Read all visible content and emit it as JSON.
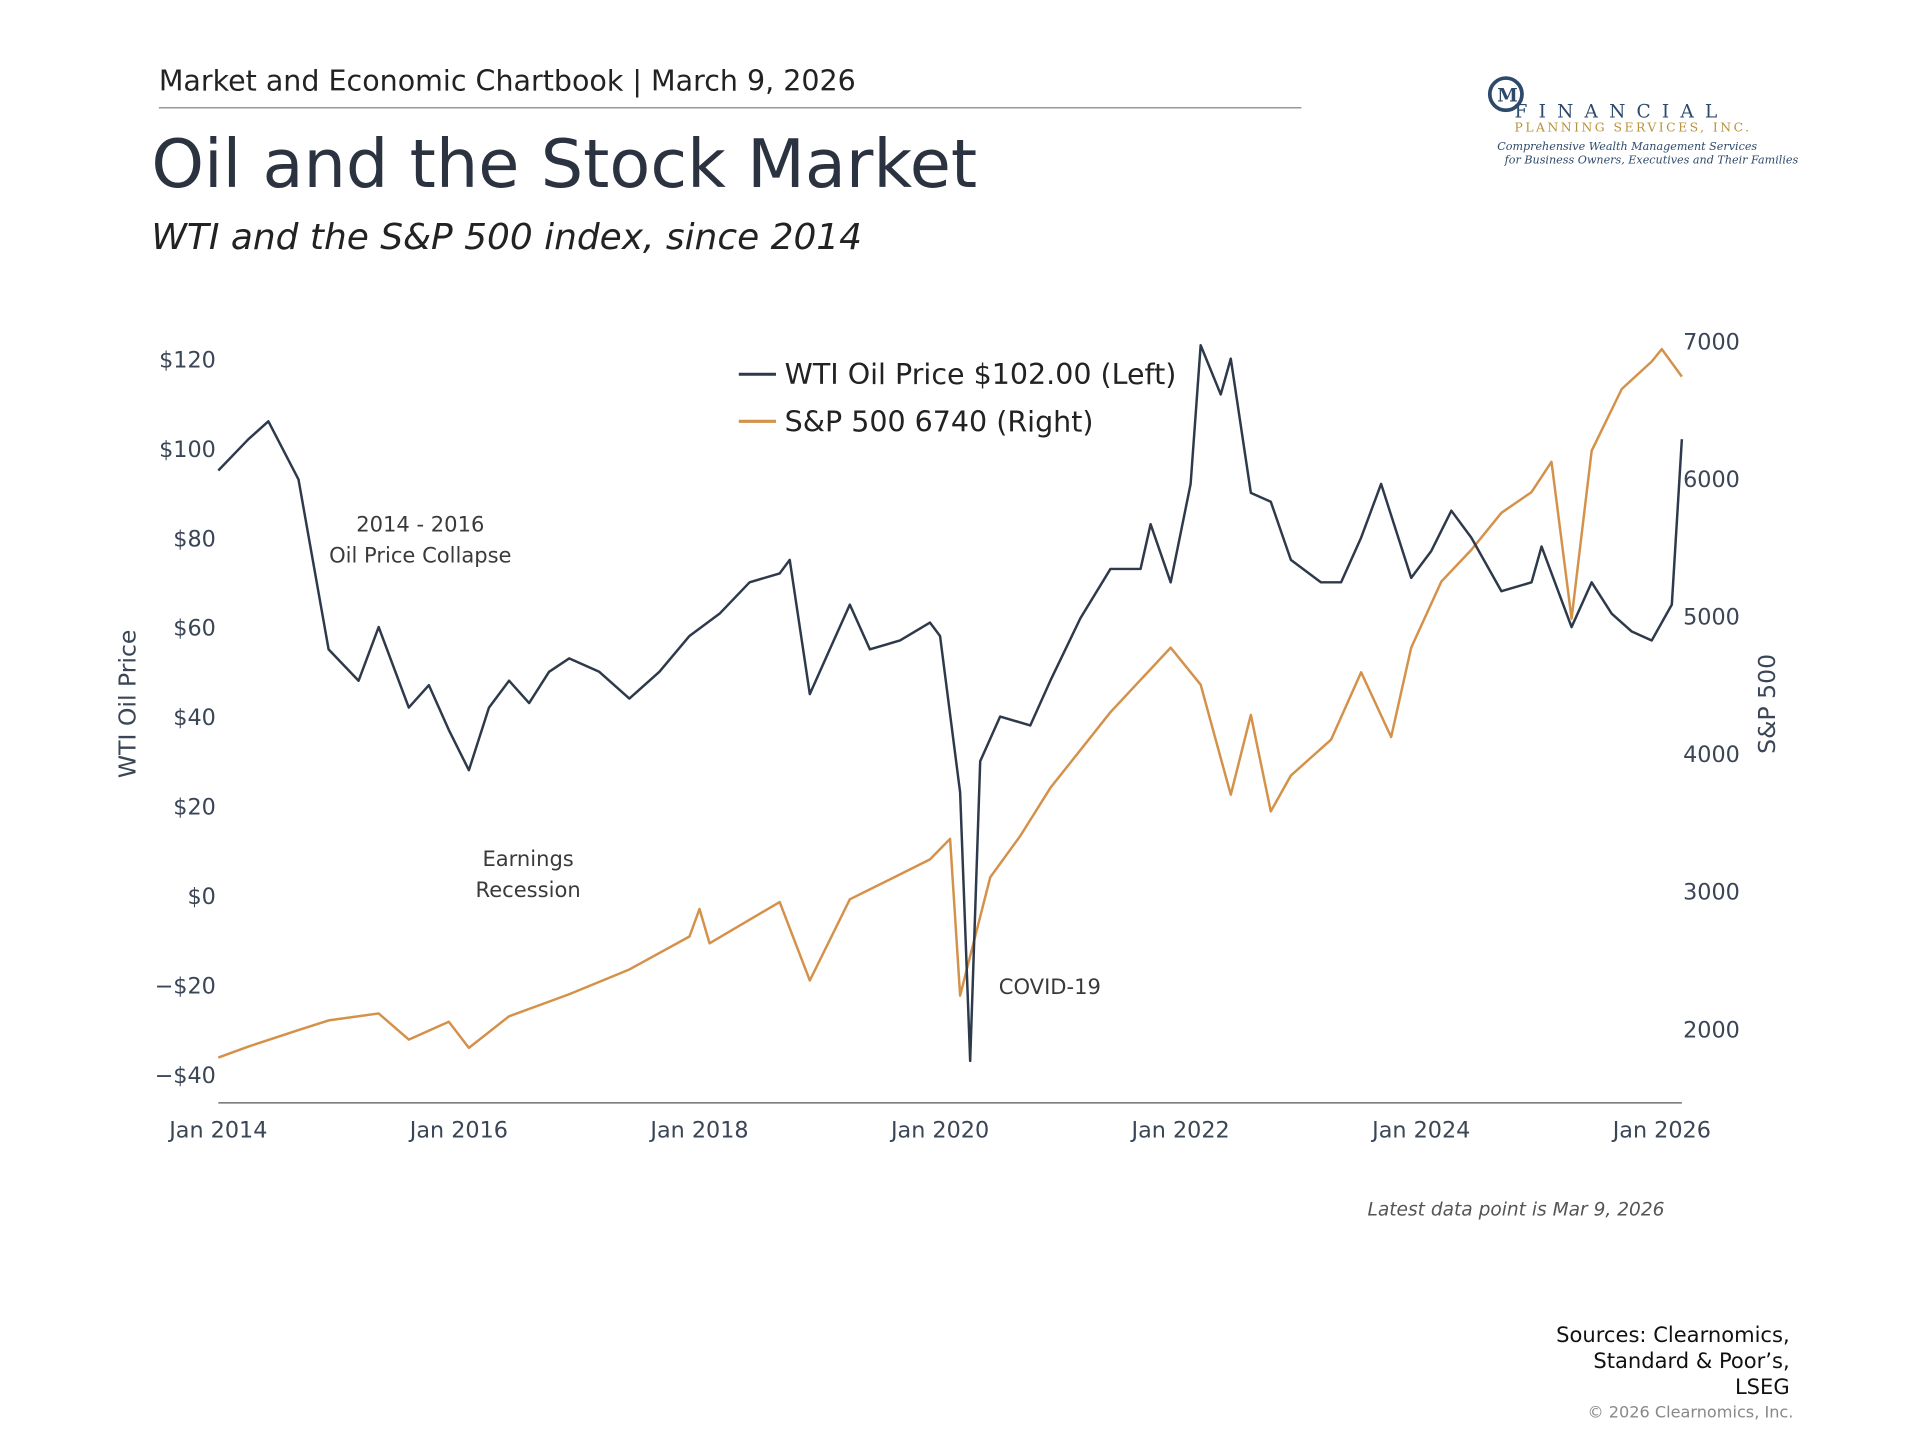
{
  "header": {
    "chartbook": "Market and Economic Chartbook | March 9, 2026",
    "logo_name": "FINANCIAL",
    "logo_sub": "PLANNING SERVICES, INC.",
    "logo_tagline": [
      "Comprehensive Wealth Management Services",
      "for Business Owners, Executives and Their Families"
    ]
  },
  "chart_data": {
    "type": "line",
    "title": "Oil and the Stock Market",
    "subtitle": "WTI and the S&P 500 index, since 2014",
    "y_label": "WTI Oil Price",
    "y2_label": "S&P 500",
    "xlim": [
      "2014-01",
      "2026-03"
    ],
    "xticks": [
      {
        "value": "2014-01",
        "label": "Jan 2014"
      },
      {
        "value": "2016-01",
        "label": "Jan 2016"
      },
      {
        "value": "2018-01",
        "label": "Jan 2018"
      },
      {
        "value": "2020-01",
        "label": "Jan 2020"
      },
      {
        "value": "2022-01",
        "label": "Jan 2022"
      },
      {
        "value": "2024-01",
        "label": "Jan 2024"
      },
      {
        "value": "2026-01",
        "label": "Jan 2026"
      }
    ],
    "ylim": [
      -46.4,
      124
    ],
    "yticks": [
      {
        "value": -40,
        "label": "−$40"
      },
      {
        "value": -20,
        "label": "−$20"
      },
      {
        "value": 0,
        "label": "$0"
      },
      {
        "value": 20,
        "label": "$20"
      },
      {
        "value": 40,
        "label": "$40"
      },
      {
        "value": 60,
        "label": "$60"
      },
      {
        "value": 80,
        "label": "$80"
      },
      {
        "value": 100,
        "label": "$100"
      },
      {
        "value": 120,
        "label": "$120"
      }
    ],
    "y2lim": [
      1460,
      7000
    ],
    "y2ticks": [
      2000,
      3000,
      4000,
      5000,
      6000,
      7000
    ],
    "legend": "top",
    "series": [
      {
        "name": "WTI Oil Price $102.00 (Left)",
        "color": "#2e3a4b",
        "axis": "y",
        "x": [
          "2014-01",
          "2014-04",
          "2014-06",
          "2014-09",
          "2014-12",
          "2015-03",
          "2015-05",
          "2015-08",
          "2015-10",
          "2015-12",
          "2016-02",
          "2016-04",
          "2016-06",
          "2016-08",
          "2016-10",
          "2016-12",
          "2017-03",
          "2017-06",
          "2017-09",
          "2017-12",
          "2018-03",
          "2018-06",
          "2018-09",
          "2018-10",
          "2018-12",
          "2019-02",
          "2019-04",
          "2019-06",
          "2019-09",
          "2019-12",
          "2020-01",
          "2020-03",
          "2020-04",
          "2020-05",
          "2020-07",
          "2020-10",
          "2020-12",
          "2021-03",
          "2021-06",
          "2021-09",
          "2021-10",
          "2021-12",
          "2022-02",
          "2022-03",
          "2022-05",
          "2022-06",
          "2022-08",
          "2022-10",
          "2022-12",
          "2023-03",
          "2023-05",
          "2023-07",
          "2023-09",
          "2023-12",
          "2024-02",
          "2024-04",
          "2024-06",
          "2024-09",
          "2024-12",
          "2025-01",
          "2025-04",
          "2025-06",
          "2025-08",
          "2025-10",
          "2025-12",
          "2026-02",
          "2026-03"
        ],
        "values": [
          95,
          102,
          106,
          93,
          55,
          48,
          60,
          42,
          47,
          37,
          28,
          42,
          48,
          43,
          50,
          53,
          50,
          44,
          50,
          58,
          63,
          70,
          72,
          75,
          45,
          55,
          65,
          55,
          57,
          61,
          58,
          23,
          -37,
          30,
          40,
          38,
          48,
          62,
          73,
          73,
          83,
          70,
          92,
          123,
          112,
          120,
          90,
          88,
          75,
          70,
          70,
          80,
          92,
          71,
          77,
          86,
          80,
          68,
          70,
          78,
          60,
          70,
          63,
          59,
          57,
          65,
          102
        ]
      },
      {
        "name": "S&P 500 6740 (Right)",
        "color": "#d4914a",
        "axis": "y2",
        "x": [
          "2014-01",
          "2014-04",
          "2014-09",
          "2014-12",
          "2015-05",
          "2015-08",
          "2015-12",
          "2016-02",
          "2016-06",
          "2016-12",
          "2017-06",
          "2017-12",
          "2018-01",
          "2018-02",
          "2018-09",
          "2018-12",
          "2019-04",
          "2019-12",
          "2020-02",
          "2020-03",
          "2020-06",
          "2020-09",
          "2020-12",
          "2021-06",
          "2021-12",
          "2022-03",
          "2022-06",
          "2022-08",
          "2022-10",
          "2022-12",
          "2023-04",
          "2023-07",
          "2023-10",
          "2023-12",
          "2024-03",
          "2024-06",
          "2024-09",
          "2024-12",
          "2025-02",
          "2025-04",
          "2025-06",
          "2025-09",
          "2025-12",
          "2026-01",
          "2026-03"
        ],
        "values": [
          1790,
          1870,
          1990,
          2060,
          2110,
          1920,
          2050,
          1860,
          2090,
          2250,
          2430,
          2670,
          2870,
          2620,
          2920,
          2350,
          2940,
          3230,
          3380,
          2240,
          3100,
          3400,
          3750,
          4300,
          4770,
          4500,
          3700,
          4280,
          3580,
          3840,
          4100,
          4590,
          4120,
          4770,
          5250,
          5480,
          5750,
          5900,
          6120,
          4980,
          6200,
          6650,
          6850,
          6940,
          6740
        ]
      }
    ],
    "annotations": [
      [
        "2014 - 2016",
        "Oil Price Collapse"
      ],
      [
        "Earnings",
        "Recession"
      ],
      [
        "COVID-19"
      ]
    ],
    "note": "Latest data point is Mar 9, 2026"
  },
  "footer": {
    "sources": [
      "Sources: Clearnomics,",
      "Standard & Poor’s,",
      "LSEG"
    ],
    "copyright": "© 2026 Clearnomics, Inc."
  }
}
